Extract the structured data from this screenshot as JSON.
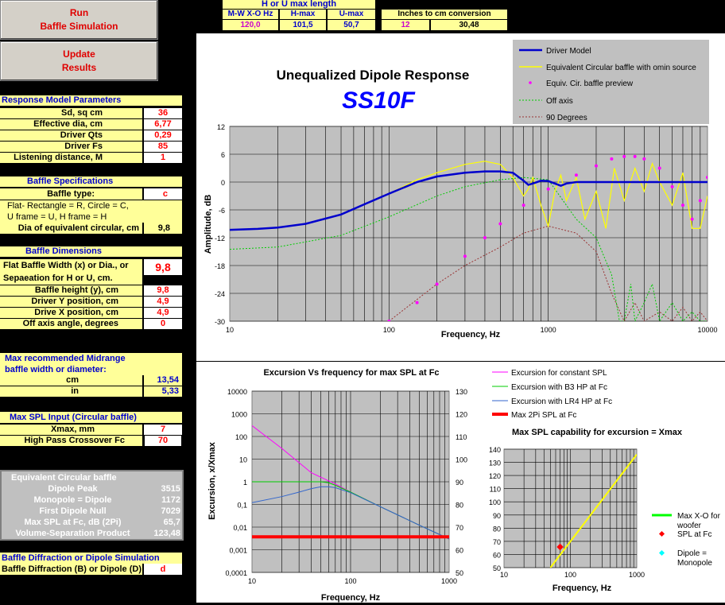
{
  "buttons": {
    "run": [
      "Run",
      "Baffle Simulation"
    ],
    "update": [
      "Update",
      "Results"
    ]
  },
  "top_table": {
    "title": "H or U max length",
    "headers": [
      "M-W  X-O Hz",
      "H-max",
      "U-max"
    ],
    "values": [
      "120,0",
      "101,5",
      "50,7"
    ],
    "conv_title": "Inches to  cm conversion",
    "conv_values": [
      "12",
      "30,48"
    ]
  },
  "response_params": {
    "title": "Response Model Parameters",
    "rows": [
      {
        "label": "Sd, sq cm",
        "value": "36"
      },
      {
        "label": "Effective dia, cm",
        "value": "6,77"
      },
      {
        "label": "Driver Qts",
        "value": "0,29"
      },
      {
        "label": "Driver Fs",
        "value": "85"
      },
      {
        "label": "Listening distance, M",
        "value": "1"
      }
    ]
  },
  "baffle_specs": {
    "title": "Baffle Specifications",
    "type_label": "Baffle type:",
    "type_value": "c",
    "note1": "Flat- Rectangle = R, Circle = C,",
    "note2": "U frame = U, H frame = H",
    "dia_label": "Dia of equivalent circular, cm",
    "dia_value": "9,8"
  },
  "baffle_dims": {
    "title": "Baffle Dimensions",
    "width_label1": "Flat Baffle Width (x) or Dia., or",
    "width_label2": "Sepaeation for H or U, cm.",
    "width_value": "9,8",
    "rows": [
      {
        "label": "Baffle height (y), cm",
        "value": "9,8"
      },
      {
        "label": "Driver Y position, cm",
        "value": "4,9"
      },
      {
        "label": "Drive X position, cm",
        "value": "4,9"
      },
      {
        "label": "Off axis angle, degrees",
        "value": "0"
      }
    ]
  },
  "max_midrange": {
    "title1": "Max recommended Midrange",
    "title2": "baffle width or diameter:",
    "rows": [
      {
        "label": "cm",
        "value": "13,54"
      },
      {
        "label": "in",
        "value": "5,33"
      }
    ]
  },
  "max_spl": {
    "title": "Max SPL Input (Circular baffle)",
    "rows": [
      {
        "label": "Xmax, mm",
        "value": "7"
      },
      {
        "label": "High Pass Crossover Fc",
        "value": "70"
      }
    ]
  },
  "equiv_circular": {
    "title": "Equivalent  Circular  baffle",
    "rows": [
      {
        "label": "Dipole Peak",
        "value": "3515"
      },
      {
        "label": "Monopole = Dipole",
        "value": "1172"
      },
      {
        "label": "First Dipole Null",
        "value": "7029"
      },
      {
        "label": "Max SPL at Fc, dB (2Pi)",
        "value": "65,7"
      },
      {
        "label": "Volume-Separation Product",
        "value": "123,48"
      }
    ]
  },
  "diffraction": {
    "title": "Baffle Diffraction or Dipole Simulation",
    "label": "Baffle Diffraction (B) or Dipole (D)",
    "value": "d"
  },
  "colors": {
    "driver_model": "#0000cc",
    "equiv_circular": "#ffff00",
    "preview": "#ff00ff",
    "off_axis": "#00cc00",
    "deg90": "#993333",
    "plot_bg": "#c0c0c0"
  },
  "chart_data": [
    {
      "type": "line",
      "title": "Unequalized Dipole Response",
      "subtitle": "SS10F",
      "xlabel": "Frequency, Hz",
      "ylabel": "Amplitude, dB",
      "xscale": "log",
      "xlim": [
        10,
        10000
      ],
      "ylim": [
        -30,
        12
      ],
      "xticks": [
        "10",
        "100",
        "1000",
        "10000"
      ],
      "yticks": [
        "12",
        "6",
        "0",
        "-6",
        "-12",
        "-18",
        "-24",
        "-30"
      ],
      "legend": [
        "Driver Model",
        "Equivalent Circular baffle with omin source",
        "Equiv. Cir. baffle preview",
        "Off axis",
        "90 Degrees"
      ],
      "series": [
        {
          "name": "Driver Model",
          "x": [
            10,
            15,
            20,
            30,
            50,
            70,
            100,
            150,
            200,
            300,
            400,
            500,
            600,
            700,
            750,
            800,
            900,
            1000,
            1100,
            1200,
            1300,
            1500,
            2000,
            3000,
            5000,
            10000
          ],
          "y": [
            -10.3,
            -10.1,
            -9.8,
            -9,
            -7,
            -4.8,
            -2.5,
            0,
            1.2,
            2,
            2.3,
            2.3,
            2,
            0.3,
            -0.6,
            -0.3,
            0.3,
            0.2,
            -0.3,
            -0.8,
            -0.3,
            0,
            0,
            0,
            0,
            0
          ]
        },
        {
          "name": "Equivalent Circular baffle with omin source",
          "x": [
            10,
            20,
            30,
            50,
            70,
            100,
            150,
            200,
            300,
            400,
            500,
            600,
            700,
            750,
            800,
            900,
            1000,
            1100,
            1200,
            1300,
            1500,
            1700,
            2000,
            2300,
            2600,
            3000,
            3500,
            4000,
            4500,
            5000,
            6000,
            7000,
            8000,
            9000,
            10000
          ],
          "y": [
            -10.3,
            -9.8,
            -9,
            -7,
            -4.8,
            -2.5,
            0.5,
            2,
            3.8,
            4.5,
            3.8,
            1,
            -3,
            -1.5,
            1,
            -5,
            -9.5,
            -2,
            1.5,
            -4,
            1,
            -8,
            -2,
            -10,
            3,
            -4,
            3,
            -2,
            4,
            0,
            -5,
            2,
            -10,
            -10,
            -3
          ]
        },
        {
          "name": "Equiv. Cir. baffle preview",
          "x": [
            100,
            150,
            200,
            300,
            400,
            500,
            700,
            1000,
            1500,
            2000,
            2500,
            3000,
            3500,
            4000,
            5000,
            6000,
            7000,
            8000,
            9000,
            10000
          ],
          "y": [
            -30,
            -26,
            -22,
            -16,
            -12,
            -9,
            -5,
            -1.5,
            1.5,
            3.5,
            5,
            5.5,
            5.5,
            5,
            3,
            -1,
            -5,
            -8,
            -4,
            1
          ]
        },
        {
          "name": "Off axis",
          "x": [
            10,
            20,
            50,
            100,
            200,
            300,
            500,
            700,
            1000,
            1500,
            2000,
            2500,
            2800,
            3000,
            3300,
            3500,
            4000,
            4500,
            5000,
            6000,
            7000,
            8000,
            9000,
            10000
          ],
          "y": [
            -14.5,
            -14,
            -11.5,
            -7.5,
            -3,
            -1,
            0.5,
            1,
            0.5,
            -8,
            -12,
            -20,
            -30,
            -30,
            -22,
            -30,
            -26,
            -22,
            -30,
            -26,
            -30,
            -28,
            -30,
            -30
          ]
        },
        {
          "name": "90 Degrees",
          "x": [
            10,
            100,
            200,
            300,
            500,
            700,
            1000,
            1500,
            2000,
            2500,
            3000,
            3500,
            4000,
            5000,
            6000,
            7000,
            8000,
            9000,
            10000
          ],
          "y": [
            -50,
            -30,
            -22,
            -18,
            -14,
            -11,
            -9.5,
            -11,
            -15,
            -24,
            -30,
            -26,
            -30,
            -28,
            -30,
            -27,
            -30,
            -28,
            -30
          ]
        }
      ]
    },
    {
      "type": "line",
      "title": "Excursion Vs frequency  for max SPL  at Fc",
      "xlabel": "Frequency, Hz",
      "ylabel": "Excursion, x/Xmax",
      "xscale": "log",
      "yscale": "log",
      "xlim": [
        10,
        1000
      ],
      "ylim": [
        0.0001,
        10000
      ],
      "y2lim": [
        50,
        130
      ],
      "xticks": [
        "10",
        "100",
        "1000"
      ],
      "yticks": [
        "10000",
        "1000",
        "100",
        "10",
        "1",
        "0,1",
        "0,01",
        "0,001",
        "0,0001"
      ],
      "y2ticks": [
        "130",
        "120",
        "110",
        "100",
        "90",
        "80",
        "70",
        "60",
        "50"
      ],
      "legend": [
        "Excursion for constant SPL",
        "Excursion with B3 HP at Fc",
        "Excursion with LR4 HP at Fc",
        "Max 2Pi SPL at Fc"
      ],
      "series": [
        {
          "name": "Excursion for constant SPL",
          "x": [
            10,
            20,
            40,
            70,
            100,
            200,
            500,
            1000
          ],
          "y": [
            300,
            30,
            2.5,
            0.8,
            0.35,
            0.08,
            0.012,
            0.003
          ]
        },
        {
          "name": "Excursion with B3 HP at Fc",
          "x": [
            10,
            20,
            40,
            50,
            60,
            70,
            100,
            200,
            500,
            1000
          ],
          "y": [
            1,
            1,
            1,
            1,
            0.9,
            0.7,
            0.35,
            0.08,
            0.012,
            0.003
          ]
        },
        {
          "name": "Excursion with LR4 HP at Fc",
          "x": [
            10,
            20,
            30,
            40,
            50,
            60,
            70,
            100,
            200,
            500,
            1000
          ],
          "y": [
            0.12,
            0.22,
            0.35,
            0.5,
            0.6,
            0.6,
            0.55,
            0.33,
            0.08,
            0.012,
            0.003
          ]
        },
        {
          "name": "Max 2Pi SPL at Fc",
          "axis": "y2",
          "x": [
            10,
            1000
          ],
          "y": [
            65.7,
            65.7
          ]
        }
      ]
    },
    {
      "type": "line",
      "title": "Max SPL capability for excursion = Xmax",
      "xlabel": "Frequency, Hz",
      "xscale": "log",
      "xlim": [
        10,
        1000
      ],
      "ylim": [
        50,
        140
      ],
      "xticks": [
        "10",
        "100",
        "1000"
      ],
      "yticks": [
        "140",
        "130",
        "120",
        "110",
        "100",
        "90",
        "80",
        "70",
        "60",
        "50"
      ],
      "legend": [
        "Max X-O for woofer",
        "SPL at Fc",
        "Dipole = Monopole"
      ],
      "series": [
        {
          "name": "Max X-O for woofer",
          "x": [
            50,
            1000
          ],
          "y": [
            50,
            136
          ]
        },
        {
          "name": "SPL at Fc",
          "x": [
            70
          ],
          "y": [
            65.7
          ]
        }
      ]
    }
  ]
}
